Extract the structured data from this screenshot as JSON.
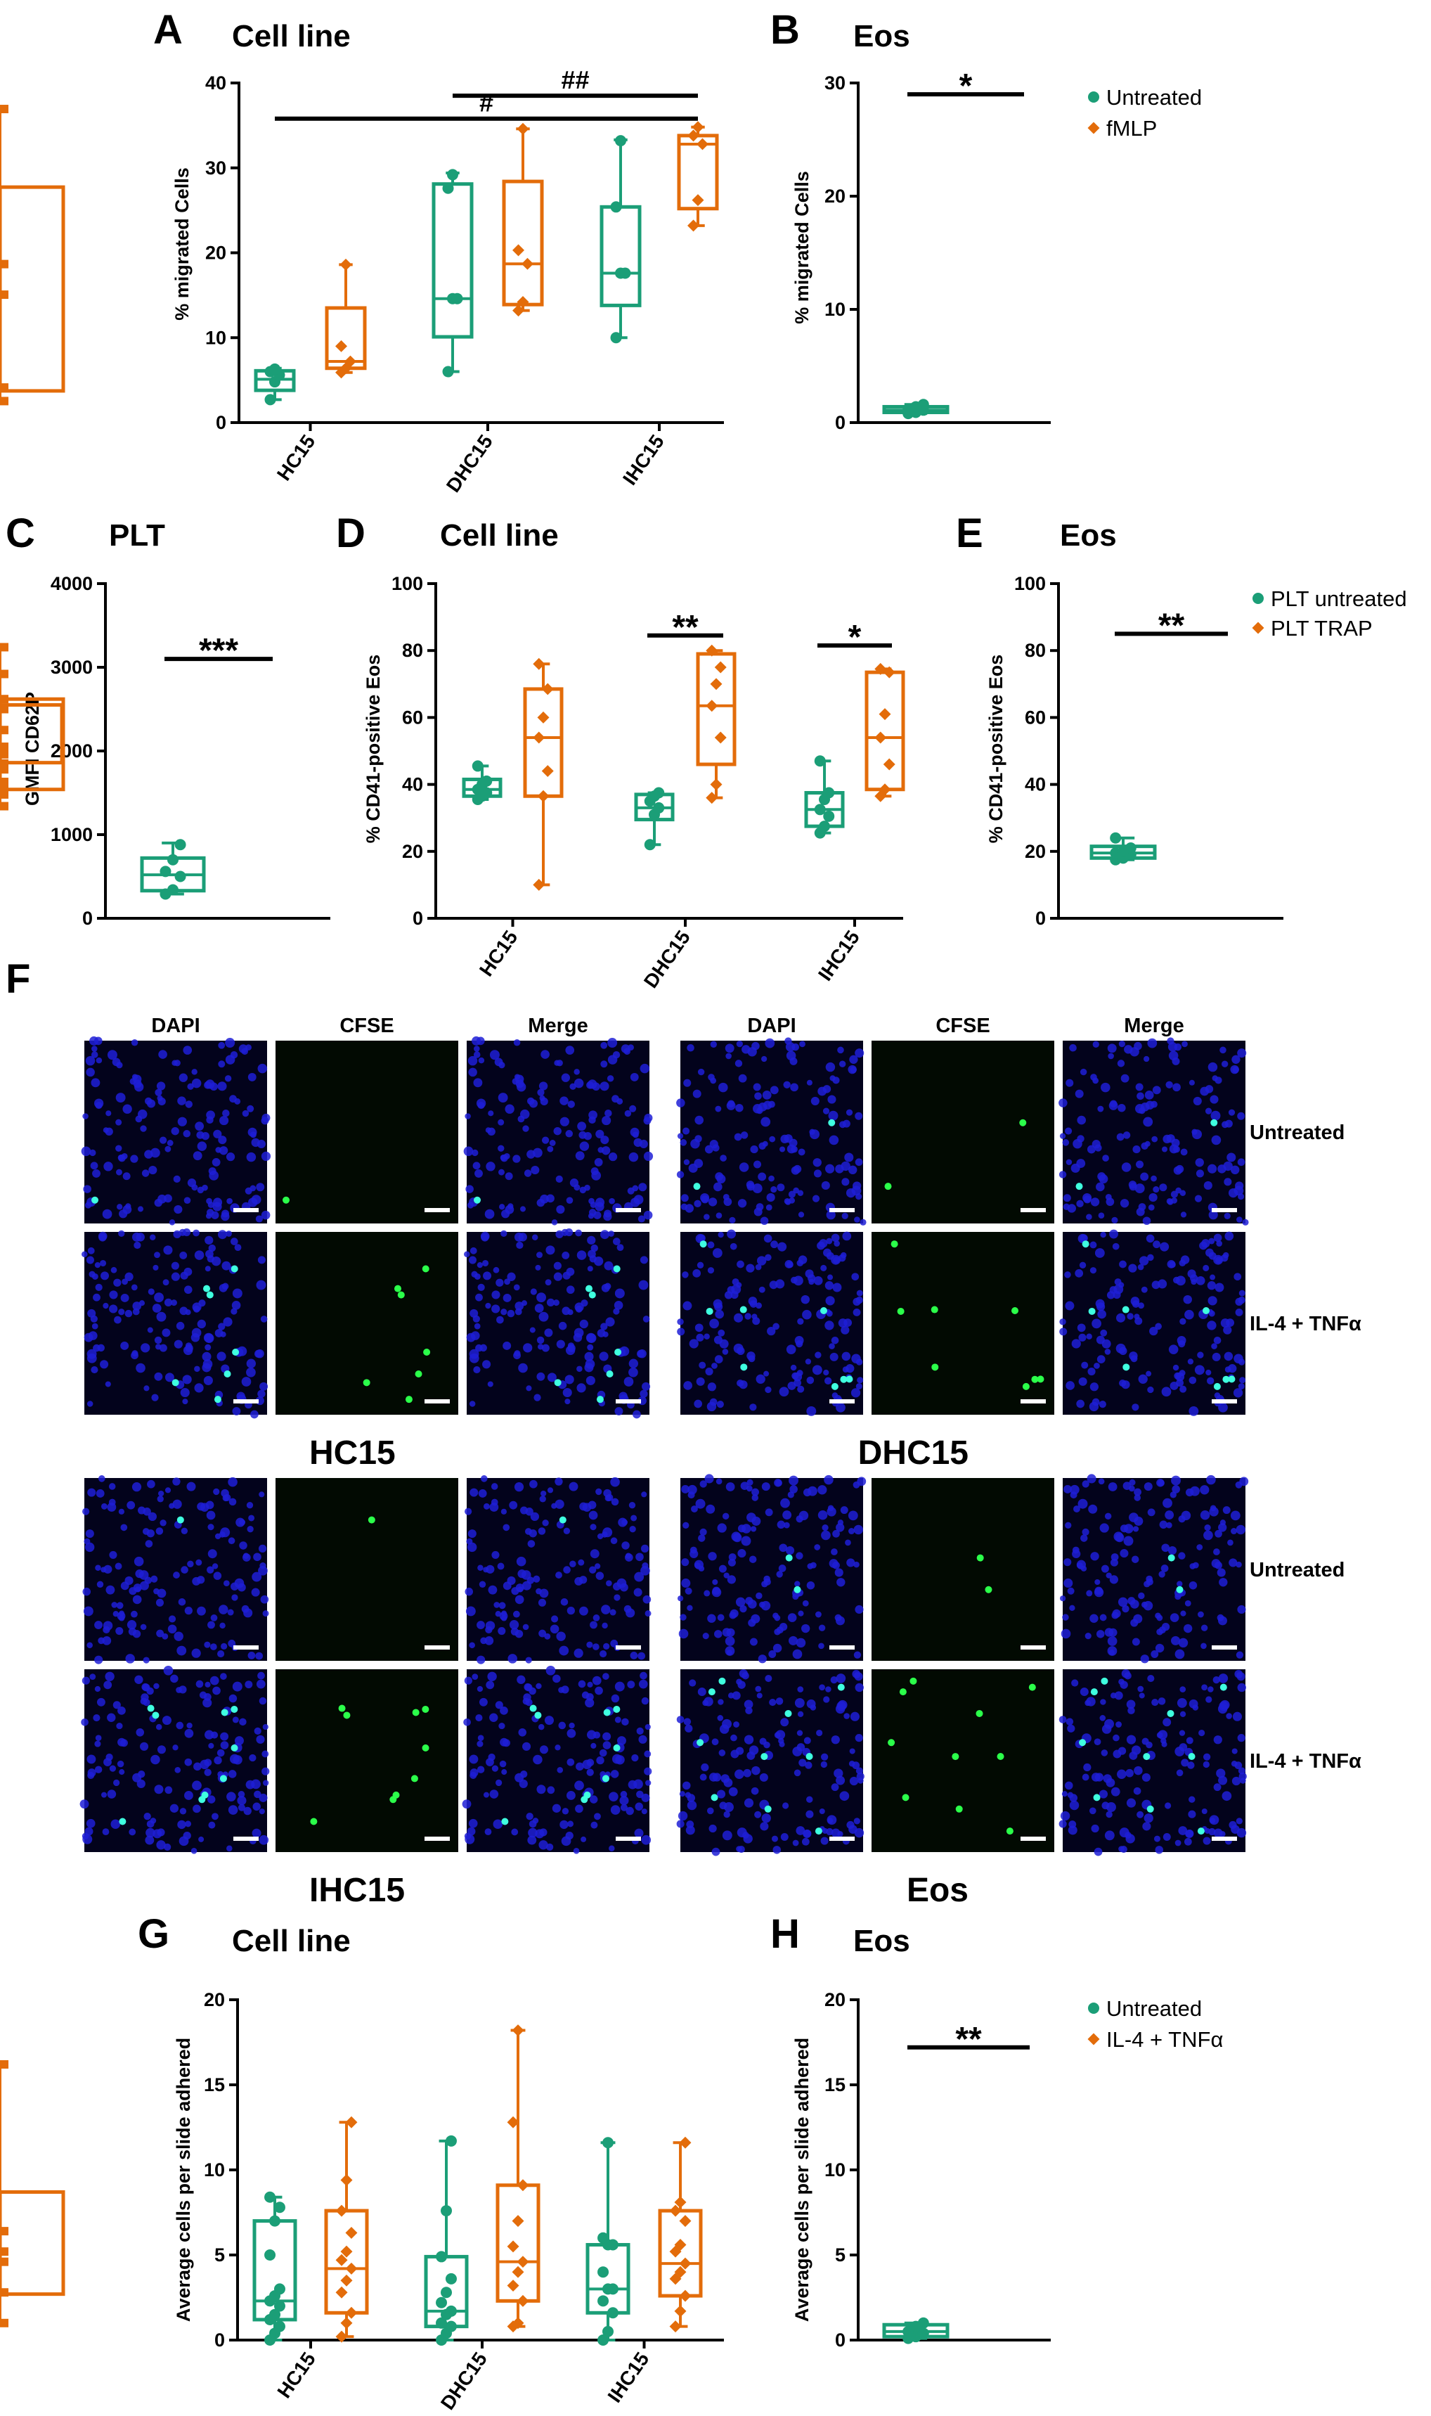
{
  "colors": {
    "untreated": "#1b9e77",
    "treated": "#e36c0a",
    "axis": "#000000"
  },
  "chart_data": [
    {
      "id": "A",
      "panel_label": "A",
      "title": "Cell line",
      "type": "box",
      "ylabel": "% migrated Cells",
      "ylim": [
        0,
        40
      ],
      "yticks": [
        0,
        10,
        20,
        30,
        40
      ],
      "categories": [
        "HC15",
        "DHC15",
        "IHC15"
      ],
      "series": [
        {
          "name": "Untreated",
          "color_key": "untreated",
          "marker": "circle",
          "boxes": [
            {
              "min": 2.7,
              "q1": 3.8,
              "med": 5.1,
              "q3": 6.1,
              "max": 6.4,
              "points": [
                2.7,
                4.8,
                5.6,
                6.0,
                6.3
              ]
            },
            {
              "min": 6.0,
              "q1": 10.1,
              "med": 14.6,
              "q3": 28.1,
              "max": 29.4,
              "points": [
                6.0,
                14.6,
                14.6,
                27.6,
                29.2
              ]
            },
            {
              "min": 10.0,
              "q1": 13.8,
              "med": 17.6,
              "q3": 25.4,
              "max": 33.3,
              "points": [
                10.0,
                17.6,
                17.6,
                25.4,
                33.2
              ]
            }
          ]
        },
        {
          "name": "fMLP",
          "color_key": "treated",
          "marker": "diamond",
          "boxes": [
            {
              "min": 5.9,
              "q1": 6.4,
              "med": 7.2,
              "q3": 13.5,
              "max": 18.6,
              "points": [
                5.9,
                6.4,
                7.2,
                9.0,
                18.6
              ]
            },
            {
              "min": 13.2,
              "q1": 13.9,
              "med": 18.7,
              "q3": 28.4,
              "max": 34.6,
              "points": [
                13.2,
                14.2,
                18.7,
                20.3,
                34.6
              ]
            },
            {
              "min": 23.2,
              "q1": 25.2,
              "med": 32.8,
              "q3": 33.8,
              "max": 34.8,
              "points": [
                23.2,
                26.2,
                32.8,
                33.8,
                34.8
              ]
            }
          ]
        }
      ],
      "annotations": [
        {
          "text": "##",
          "from": 1,
          "to": 2,
          "y": 38.5
        },
        {
          "text": "#",
          "from": 0,
          "to": 2,
          "y": 35.8
        }
      ]
    },
    {
      "id": "B",
      "panel_label": "B",
      "title": "Eos",
      "type": "box",
      "ylabel": "% migrated Cells",
      "ylim": [
        0,
        30
      ],
      "yticks": [
        0,
        10,
        20,
        30
      ],
      "categories": [
        "Untreated",
        "fMLP"
      ],
      "series": [
        {
          "name": "Untreated",
          "color_key": "untreated",
          "marker": "circle",
          "boxes": [
            {
              "min": 0.8,
              "q1": 0.9,
              "med": 1.1,
              "q3": 1.4,
              "max": 1.6,
              "points": [
                0.8,
                0.9,
                1.1,
                1.2,
                1.4,
                1.6
              ]
            }
          ]
        },
        {
          "name": "fMLP",
          "color_key": "treated",
          "marker": "diamond",
          "boxes": [
            {
              "min": 1.9,
              "q1": 2.8,
              "med": 11.3,
              "q3": 20.8,
              "max": 27.7,
              "points": [
                1.9,
                3.1,
                11.3,
                14.0,
                27.7
              ]
            }
          ]
        }
      ],
      "legend": [
        "Untreated",
        "fMLP"
      ],
      "annotations": [
        {
          "text": "*",
          "from": 0,
          "to": 1,
          "y": 29.0
        }
      ]
    },
    {
      "id": "C",
      "panel_label": "C",
      "title": "PLT",
      "type": "box",
      "ylabel": "GMFI CD62P",
      "ylim": [
        0,
        4000
      ],
      "yticks": [
        0,
        1000,
        2000,
        3000,
        4000
      ],
      "categories": [
        "Untreated",
        "TRAP"
      ],
      "series": [
        {
          "name": "PLT untreated",
          "color_key": "untreated",
          "marker": "circle",
          "boxes": [
            {
              "min": 290,
              "q1": 330,
              "med": 520,
              "q3": 720,
              "max": 900,
              "points": [
                290,
                340,
                500,
                560,
                700,
                880
              ]
            }
          ]
        },
        {
          "name": "PLT TRAP",
          "color_key": "treated",
          "marker": "diamond",
          "boxes": [
            {
              "min": 1630,
              "q1": 1860,
              "med": 2080,
              "q3": 2550,
              "max": 2920,
              "points": [
                1630,
                1850,
                2050,
                2250,
                2500,
                2920
              ]
            }
          ]
        }
      ],
      "annotations": [
        {
          "text": "***",
          "from": 0,
          "to": 1,
          "y": 3100
        }
      ]
    },
    {
      "id": "D",
      "panel_label": "D",
      "title": "Cell line",
      "type": "box",
      "ylabel": "% CD41-positive Eos",
      "ylim": [
        0,
        100
      ],
      "yticks": [
        0,
        20,
        40,
        60,
        80,
        100
      ],
      "categories": [
        "HC15",
        "DHC15",
        "IHC15"
      ],
      "series": [
        {
          "name": "PLT untreated",
          "color_key": "untreated",
          "marker": "circle",
          "boxes": [
            {
              "min": 35.5,
              "q1": 36.5,
              "med": 38.5,
              "q3": 41.5,
              "max": 45.5,
              "points": [
                35.5,
                36.5,
                37.5,
                38.5,
                40.0,
                41.0,
                45.5
              ]
            },
            {
              "min": 22.0,
              "q1": 29.5,
              "med": 33.0,
              "q3": 37.0,
              "max": 37.5,
              "points": [
                22.0,
                31.0,
                33.0,
                35.0,
                36.5,
                37.5
              ]
            },
            {
              "min": 25.5,
              "q1": 27.5,
              "med": 32.5,
              "q3": 37.5,
              "max": 47.0,
              "points": [
                25.5,
                27.5,
                30.5,
                32.5,
                35.5,
                37.5,
                47.0
              ]
            }
          ]
        },
        {
          "name": "PLT TRAP",
          "color_key": "treated",
          "marker": "diamond",
          "boxes": [
            {
              "min": 10.0,
              "q1": 36.5,
              "med": 54.0,
              "q3": 68.5,
              "max": 76.0,
              "points": [
                10.0,
                36.5,
                44.0,
                54.0,
                60.0,
                68.5,
                76.0
              ]
            },
            {
              "min": 36.0,
              "q1": 46.0,
              "med": 63.5,
              "q3": 79.0,
              "max": 80.0,
              "points": [
                36.0,
                40.0,
                54.0,
                63.5,
                70.0,
                75.0,
                80.0
              ]
            },
            {
              "min": 36.5,
              "q1": 38.5,
              "med": 54.0,
              "q3": 73.5,
              "max": 74.5,
              "points": [
                36.5,
                38.5,
                46.0,
                54.0,
                61.0,
                73.5,
                74.5
              ]
            }
          ]
        }
      ],
      "annotations": [
        {
          "text": "**",
          "from": 1,
          "to": 1,
          "y": 84.5
        },
        {
          "text": "*",
          "from": 2,
          "to": 2,
          "y": 81.5
        }
      ]
    },
    {
      "id": "E",
      "panel_label": "E",
      "title": "Eos",
      "type": "box",
      "ylabel": "% CD41-positive Eos",
      "ylim": [
        0,
        100
      ],
      "yticks": [
        0,
        20,
        40,
        60,
        80,
        100
      ],
      "categories": [
        "PLT untreated",
        "PLT TRAP"
      ],
      "series": [
        {
          "name": "PLT untreated",
          "color_key": "untreated",
          "marker": "circle",
          "boxes": [
            {
              "min": 17.5,
              "q1": 18.0,
              "med": 19.5,
              "q3": 21.5,
              "max": 24.0,
              "points": [
                17.5,
                18.0,
                19.0,
                19.5,
                20.0,
                21.0,
                24.0
              ]
            }
          ]
        },
        {
          "name": "PLT TRAP",
          "color_key": "treated",
          "marker": "diamond",
          "boxes": [
            {
              "min": 33.5,
              "q1": 38.5,
              "med": 44.5,
              "q3": 65.5,
              "max": 81.0,
              "points": [
                33.5,
                37.0,
                40.0,
                44.5,
                49.0,
                65.5,
                81.0
              ]
            }
          ]
        }
      ],
      "legend": [
        "PLT untreated",
        "PLT TRAP"
      ],
      "annotations": [
        {
          "text": "**",
          "from": 0,
          "to": 1,
          "y": 85.0
        }
      ]
    },
    {
      "id": "G",
      "panel_label": "G",
      "title": "Cell line",
      "type": "box",
      "ylabel": "Average cells per slide adhered",
      "ylim": [
        0,
        20
      ],
      "yticks": [
        0,
        5,
        10,
        15,
        20
      ],
      "categories": [
        "HC15",
        "DHC15",
        "IHC15"
      ],
      "series": [
        {
          "name": "Untreated",
          "color_key": "untreated",
          "marker": "circle",
          "boxes": [
            {
              "min": 0.0,
              "q1": 1.2,
              "med": 2.3,
              "q3": 7.0,
              "max": 8.4,
              "points": [
                0.0,
                0.4,
                0.8,
                1.2,
                1.5,
                2.0,
                2.3,
                2.6,
                3.0,
                5.0,
                7.0,
                7.8,
                8.4
              ]
            },
            {
              "min": 0.0,
              "q1": 0.8,
              "med": 1.7,
              "q3": 4.9,
              "max": 11.7,
              "points": [
                0.0,
                0.4,
                0.8,
                1.0,
                1.5,
                1.7,
                2.2,
                2.8,
                3.6,
                4.9,
                7.6,
                11.7
              ]
            },
            {
              "min": 0.0,
              "q1": 1.6,
              "med": 3.0,
              "q3": 5.6,
              "max": 11.6,
              "points": [
                0.0,
                0.5,
                1.6,
                2.3,
                3.0,
                3.0,
                4.0,
                5.6,
                5.6,
                6.0,
                11.6
              ]
            }
          ]
        },
        {
          "name": "IL-4 + TNFα",
          "color_key": "treated",
          "marker": "diamond",
          "boxes": [
            {
              "min": 0.2,
              "q1": 1.6,
              "med": 4.2,
              "q3": 7.6,
              "max": 12.8,
              "points": [
                0.2,
                1.0,
                1.6,
                2.8,
                3.5,
                4.2,
                4.7,
                5.2,
                6.3,
                7.6,
                9.4,
                12.8
              ]
            },
            {
              "min": 0.8,
              "q1": 2.3,
              "med": 4.6,
              "q3": 9.1,
              "max": 18.2,
              "points": [
                0.8,
                1.0,
                2.3,
                3.2,
                4.0,
                4.6,
                5.5,
                7.0,
                9.1,
                12.8,
                18.2
              ]
            },
            {
              "min": 0.8,
              "q1": 2.6,
              "med": 4.5,
              "q3": 7.6,
              "max": 11.6,
              "points": [
                0.8,
                1.7,
                2.6,
                3.6,
                4.0,
                4.5,
                5.2,
                5.6,
                7.0,
                7.6,
                8.1,
                11.6
              ]
            }
          ]
        }
      ]
    },
    {
      "id": "H",
      "panel_label": "H",
      "title": "Eos",
      "type": "box",
      "ylabel": "Average cells per slide adhered",
      "ylim": [
        0,
        20
      ],
      "yticks": [
        0,
        5,
        10,
        15,
        20
      ],
      "categories": [
        "Untreated",
        "IL-4 + TNFα"
      ],
      "series": [
        {
          "name": "Untreated",
          "color_key": "untreated",
          "marker": "circle",
          "boxes": [
            {
              "min": 0.1,
              "q1": 0.2,
              "med": 0.5,
              "q3": 0.9,
              "max": 1.0,
              "points": [
                0.1,
                0.2,
                0.4,
                0.5,
                0.8,
                1.0
              ]
            }
          ]
        },
        {
          "name": "IL-4 + TNFα",
          "color_key": "treated",
          "marker": "diamond",
          "boxes": [
            {
              "min": 1.0,
              "q1": 2.7,
              "med": 4.6,
              "q3": 8.7,
              "max": 16.2,
              "points": [
                1.0,
                2.8,
                4.6,
                5.2,
                6.4,
                16.2
              ]
            }
          ]
        }
      ],
      "legend": [
        "Untreated",
        "IL-4 + TNFα"
      ],
      "annotations": [
        {
          "text": "**",
          "from": 0,
          "to": 1,
          "y": 17.2
        }
      ]
    }
  ],
  "microscopy": {
    "panel_label": "F",
    "column_headers": [
      "DAPI",
      "CFSE",
      "Merge"
    ],
    "row_labels": [
      "Untreated",
      "IL-4 + TNFα"
    ],
    "groups": [
      "HC15",
      "DHC15",
      "IHC15",
      "Eos"
    ]
  }
}
